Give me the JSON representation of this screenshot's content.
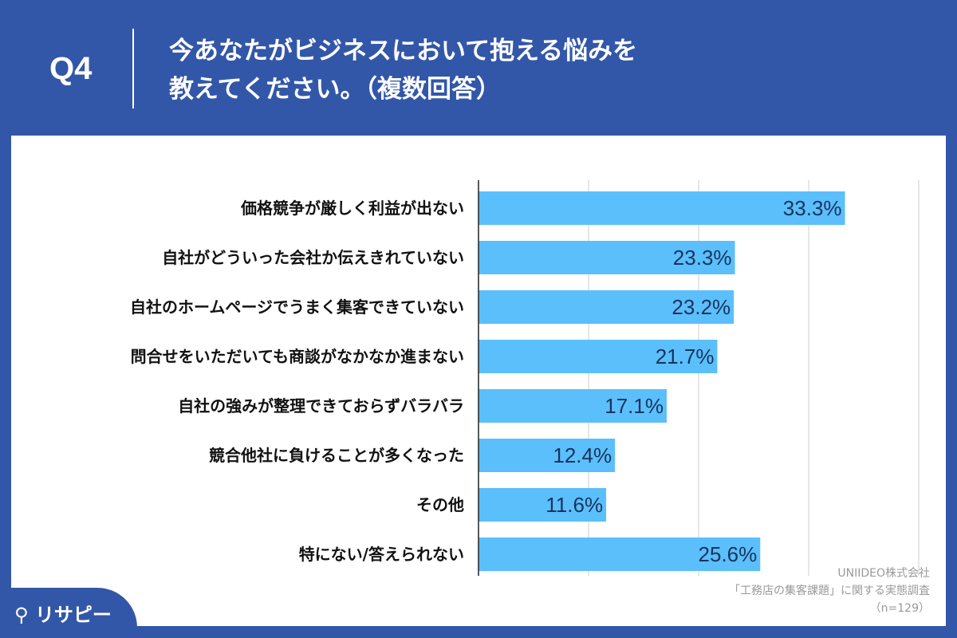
{
  "header": {
    "q": "Q4",
    "title_line1": "今あなたがビジネスにおいて抱える悩みを",
    "title_line2": "教えてください。（複数回答）"
  },
  "source": {
    "line1": "UNIIDEO株式会社",
    "line2": "「工務店の集客課題」に関する実態調査",
    "line3": "（n=129）"
  },
  "logo": {
    "text": "リサピー"
  },
  "colors": {
    "bg": "#3357a8",
    "bar": "#5bbffb"
  },
  "chart_data": {
    "type": "bar",
    "orientation": "horizontal",
    "categories": [
      "価格競争が厳しく利益が出ない",
      "自社がどういった会社か伝えきれていない",
      "自社のホームページでうまく集客できていない",
      "問合せをいただいても商談がなかなか進まない",
      "自社の強みが整理できておらずバラバラ",
      "競合他社に負けることが多くなった",
      "その他",
      "特にない/答えられない"
    ],
    "values": [
      33.3,
      23.3,
      23.2,
      21.7,
      17.1,
      12.4,
      11.6,
      25.6
    ],
    "labels": [
      "33.3%",
      "23.3%",
      "23.2%",
      "21.7%",
      "17.1%",
      "12.4%",
      "11.6%",
      "25.6%"
    ],
    "xlim": [
      0,
      40
    ],
    "grid_x": [
      10,
      20,
      30,
      40
    ],
    "unit": "%"
  }
}
